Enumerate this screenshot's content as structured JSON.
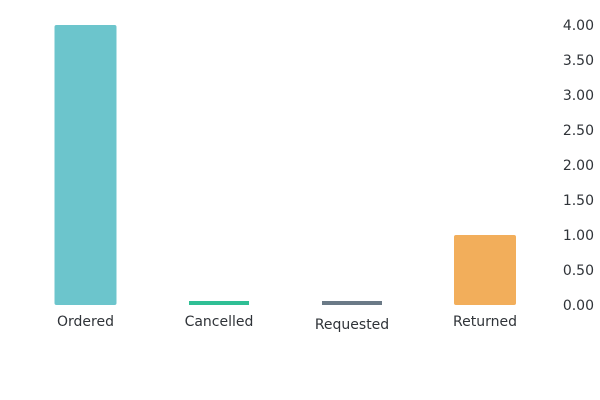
{
  "chart_data": {
    "type": "bar",
    "title": "",
    "xlabel": "",
    "ylabel": "",
    "categories": [
      "Ordered",
      "Cancelled",
      "Requested",
      "Returned"
    ],
    "values": [
      4,
      0,
      0,
      1
    ],
    "colors": [
      "#6cc5cc",
      "#2fbf95",
      "#6b7a87",
      "#f2ae5b"
    ],
    "ylim": [
      0,
      4
    ],
    "yticks": [
      0,
      0.5,
      1,
      1.5,
      2,
      2.5,
      3,
      3.5,
      4
    ],
    "ytick_labels": [
      "0.00",
      "0.50",
      "1.00",
      "1.50",
      "2.00",
      "2.50",
      "3.00",
      "3.50",
      "4.00"
    ],
    "y_axis_position": "right",
    "grid": false,
    "legend": "none"
  }
}
